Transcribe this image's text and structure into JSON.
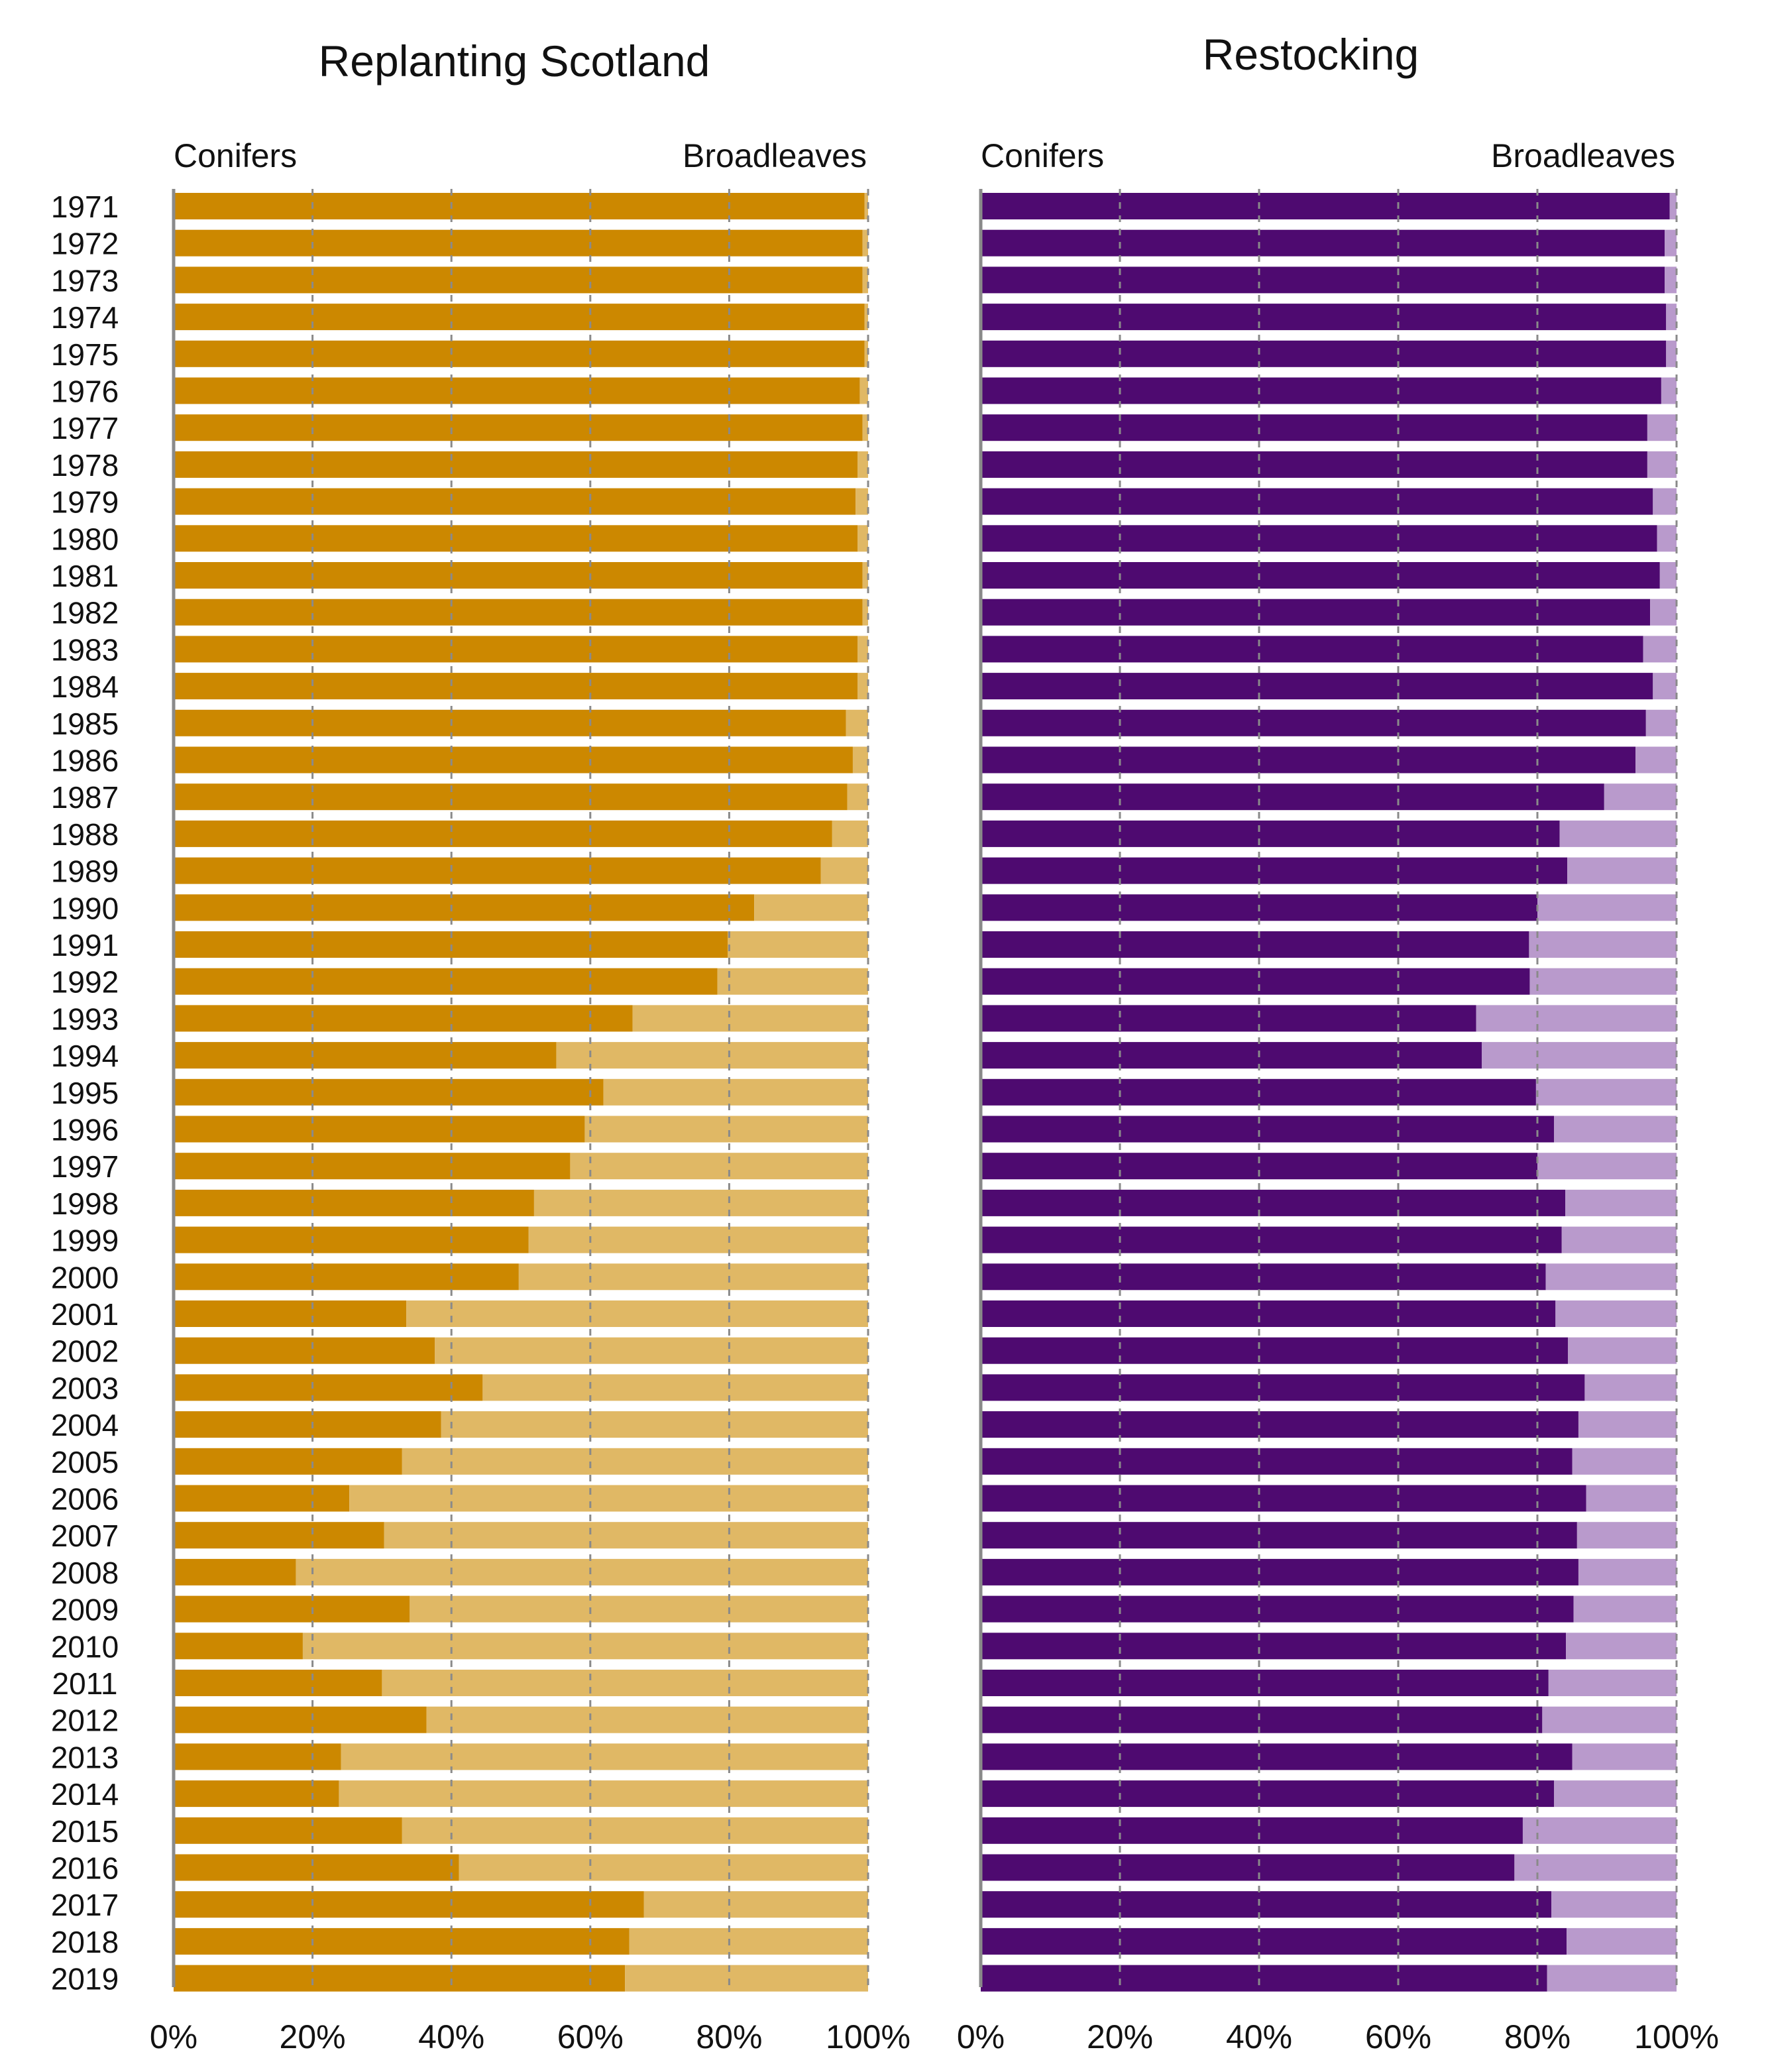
{
  "years": [
    "1971",
    "1972",
    "1973",
    "1974",
    "1975",
    "1976",
    "1977",
    "1978",
    "1979",
    "1980",
    "1981",
    "1982",
    "1983",
    "1984",
    "1985",
    "1986",
    "1987",
    "1988",
    "1989",
    "1990",
    "1991",
    "1992",
    "1993",
    "1994",
    "1995",
    "1996",
    "1997",
    "1998",
    "1999",
    "2000",
    "2001",
    "2002",
    "2003",
    "2004",
    "2005",
    "2006",
    "2007",
    "2008",
    "2009",
    "2010",
    "2011",
    "2012",
    "2013",
    "2014",
    "2015",
    "2016",
    "2017",
    "2018",
    "2019"
  ],
  "chart_data": [
    {
      "type": "bar",
      "orientation": "horizontal",
      "stacked": "percent",
      "title": "Replanting Scotland",
      "left_label": "Conifers",
      "right_label": "Broadleaves",
      "xlim": [
        0,
        100
      ],
      "x_ticks": [
        "0%",
        "20%",
        "40%",
        "60%",
        "80%",
        "100%"
      ],
      "grid": true,
      "series": [
        {
          "name": "Conifers",
          "color": "#cc8800",
          "values": [
            99.5,
            99.2,
            99.2,
            99.5,
            99.5,
            98.8,
            99.2,
            98.5,
            98.2,
            98.5,
            99.2,
            99.2,
            98.5,
            98.5,
            96.8,
            97.8,
            97.0,
            94.8,
            93.2,
            83.6,
            79.8,
            78.3,
            66.1,
            55.1,
            61.9,
            59.2,
            57.1,
            51.9,
            51.1,
            49.7,
            33.5,
            37.6,
            44.5,
            38.5,
            32.9,
            25.3,
            30.3,
            17.6,
            34.0,
            18.6,
            30.0,
            36.4,
            24.1,
            23.8,
            32.9,
            41.1,
            67.7,
            65.6,
            65.0
          ]
        },
        {
          "name": "Broadleaves",
          "color": "#e0b865",
          "values": [
            0.5,
            0.8,
            0.8,
            0.5,
            0.5,
            1.2,
            0.8,
            1.5,
            1.8,
            1.5,
            0.8,
            0.8,
            1.5,
            1.5,
            3.2,
            2.2,
            3.0,
            5.2,
            6.8,
            16.4,
            20.2,
            21.7,
            33.9,
            44.9,
            38.1,
            40.8,
            42.9,
            48.1,
            48.9,
            50.3,
            66.5,
            62.4,
            55.5,
            61.5,
            67.1,
            74.7,
            69.7,
            82.4,
            66.0,
            81.4,
            70.0,
            63.6,
            75.9,
            76.2,
            67.1,
            58.9,
            32.3,
            34.4,
            35.0
          ]
        }
      ]
    },
    {
      "type": "bar",
      "orientation": "horizontal",
      "stacked": "percent",
      "title": "Restocking",
      "left_label": "Conifers",
      "right_label": "Broadleaves",
      "xlim": [
        0,
        100
      ],
      "x_ticks": [
        "0%",
        "20%",
        "40%",
        "60%",
        "80%",
        "100%"
      ],
      "grid": true,
      "series": [
        {
          "name": "Conifers",
          "color": "#4e0a70",
          "values": [
            99.0,
            98.3,
            98.3,
            98.5,
            98.5,
            97.8,
            95.8,
            95.8,
            96.6,
            97.2,
            97.6,
            96.2,
            95.2,
            96.6,
            95.6,
            94.1,
            89.6,
            83.2,
            84.3,
            80.0,
            78.8,
            78.9,
            71.2,
            72.0,
            79.8,
            82.4,
            80.0,
            84.0,
            83.5,
            81.2,
            82.6,
            84.4,
            86.8,
            85.9,
            85.0,
            87.0,
            85.7,
            85.9,
            85.2,
            84.1,
            81.6,
            80.7,
            85.0,
            82.4,
            77.9,
            76.7,
            82.0,
            84.2,
            81.4
          ]
        },
        {
          "name": "Broadleaves",
          "color": "#b99acc",
          "values": [
            1.0,
            1.7,
            1.7,
            1.5,
            1.5,
            2.2,
            4.2,
            4.2,
            3.4,
            2.8,
            2.4,
            3.8,
            4.8,
            3.4,
            4.4,
            5.9,
            10.4,
            16.8,
            15.7,
            20.0,
            21.2,
            21.1,
            28.8,
            28.0,
            20.2,
            17.6,
            20.0,
            16.0,
            16.5,
            18.8,
            17.4,
            15.6,
            13.2,
            14.1,
            15.0,
            13.0,
            14.3,
            14.1,
            14.8,
            15.9,
            18.4,
            19.3,
            15.0,
            17.6,
            22.1,
            23.3,
            18.0,
            15.8,
            18.6
          ]
        }
      ]
    }
  ]
}
